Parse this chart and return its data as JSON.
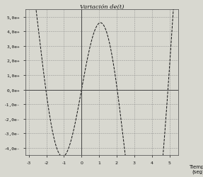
{
  "title": "Variación de(t)",
  "xlabel": "Tiempo\n(seg)",
  "xlim": [
    -3.2,
    5.5
  ],
  "ylim": [
    -4.5,
    5.5
  ],
  "xticks": [
    -3,
    -2,
    -1,
    0,
    1,
    2,
    3,
    4,
    5
  ],
  "yticks": [
    -4,
    -3,
    -2,
    -1,
    0,
    1,
    2,
    3,
    4,
    5
  ],
  "ytick_labels": [
    "-4,0e-",
    "-3,0e-",
    "-2,0e-",
    "-1,0e-",
    "0,0e+",
    "1,0e+",
    "2,0e+",
    "3,0e+",
    "4,0e+",
    "5,0e+"
  ],
  "xtick_labels": [
    "-3",
    "-2",
    "-1",
    "0",
    "1",
    "2",
    "3",
    "4",
    "5"
  ],
  "line_color": "#111111",
  "bg_color": "#d8d8d0",
  "grid_color": "#888888",
  "spine_color": "#444444",
  "figsize": [
    2.87,
    2.51
  ],
  "dpi": 100,
  "title_fontsize": 6,
  "tick_fontsize": 4.5,
  "label_fontsize": 5
}
